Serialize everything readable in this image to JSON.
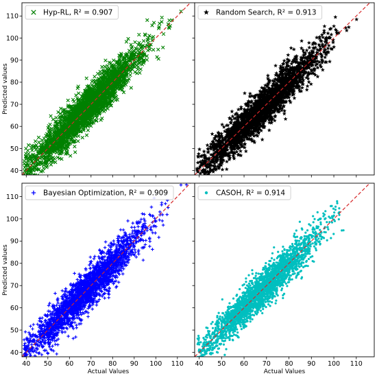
{
  "chart_data": [
    {
      "type": "scatter",
      "panel": "top-left",
      "legend": "Hyp-RL, R² = 0.907",
      "legend_position": "top-left",
      "marker": "x",
      "color": "#008000",
      "xlim": [
        38,
        118
      ],
      "ylim": [
        38,
        116
      ],
      "xticks": [
        40,
        50,
        60,
        70,
        80,
        90,
        100,
        110
      ],
      "yticks": [
        40,
        50,
        60,
        70,
        80,
        90,
        100,
        110
      ],
      "show_xtick_labels": false,
      "show_ytick_labels": true,
      "xlabel": "",
      "ylabel": "Predicted values",
      "reference_line": {
        "style": "dashed",
        "color": "#d62728",
        "slope": 1,
        "intercept": 0
      },
      "r2": 0.907,
      "point_cloud": {
        "n": 2600,
        "x_mean": 68,
        "x_sd": 13,
        "x_min": 39,
        "x_max": 117,
        "residual_sd": 4.3
      }
    },
    {
      "type": "scatter",
      "panel": "top-right",
      "legend": "Random Search, R² = 0.913",
      "legend_position": "top-left",
      "marker": "*",
      "color": "#000000",
      "xlim": [
        38,
        118
      ],
      "ylim": [
        38,
        116
      ],
      "xticks": [
        40,
        50,
        60,
        70,
        80,
        90,
        100,
        110
      ],
      "yticks": [
        40,
        50,
        60,
        70,
        80,
        90,
        100,
        110
      ],
      "show_xtick_labels": false,
      "show_ytick_labels": false,
      "xlabel": "",
      "ylabel": "",
      "reference_line": {
        "style": "dashed",
        "color": "#d62728",
        "slope": 1,
        "intercept": 0
      },
      "r2": 0.913,
      "point_cloud": {
        "n": 2600,
        "x_mean": 68,
        "x_sd": 13,
        "x_min": 39,
        "x_max": 117,
        "residual_sd": 4.2
      }
    },
    {
      "type": "scatter",
      "panel": "bottom-left",
      "legend": "Bayesian Optimization, R² = 0.909",
      "legend_position": "top-left",
      "marker": "+",
      "color": "#0000ff",
      "xlim": [
        38,
        118
      ],
      "ylim": [
        38,
        116
      ],
      "xticks": [
        40,
        50,
        60,
        70,
        80,
        90,
        100,
        110
      ],
      "yticks": [
        40,
        50,
        60,
        70,
        80,
        90,
        100,
        110
      ],
      "show_xtick_labels": true,
      "show_ytick_labels": true,
      "xlabel": "Actual Values",
      "ylabel": "Predicted values",
      "reference_line": {
        "style": "dashed",
        "color": "#d62728",
        "slope": 1,
        "intercept": 0
      },
      "r2": 0.909,
      "point_cloud": {
        "n": 2600,
        "x_mean": 68,
        "x_sd": 13,
        "x_min": 39,
        "x_max": 117,
        "residual_sd": 4.3
      }
    },
    {
      "type": "scatter",
      "panel": "bottom-right",
      "legend": "CASOH, R² = 0.914",
      "legend_position": "top-left",
      "marker": "o",
      "color": "#00bfbf",
      "xlim": [
        38,
        118
      ],
      "ylim": [
        38,
        116
      ],
      "xticks": [
        40,
        50,
        60,
        70,
        80,
        90,
        100,
        110
      ],
      "yticks": [
        40,
        50,
        60,
        70,
        80,
        90,
        100,
        110
      ],
      "show_xtick_labels": true,
      "show_ytick_labels": false,
      "xlabel": "Actual Values",
      "ylabel": "",
      "reference_line": {
        "style": "dashed",
        "color": "#d62728",
        "slope": 1,
        "intercept": 0
      },
      "r2": 0.914,
      "point_cloud": {
        "n": 2600,
        "x_mean": 68,
        "x_sd": 13,
        "x_min": 39,
        "x_max": 117,
        "residual_sd": 4.1
      }
    }
  ]
}
